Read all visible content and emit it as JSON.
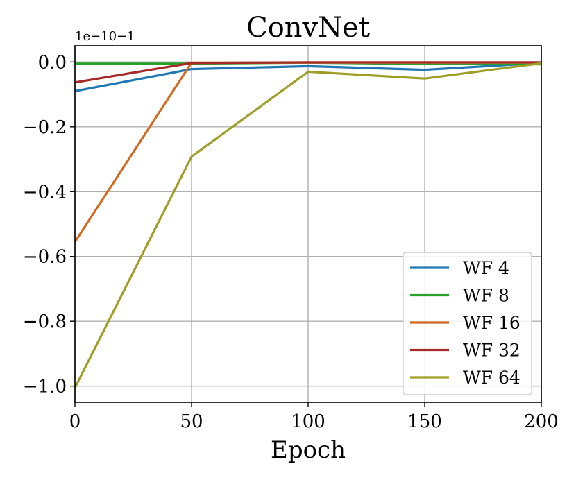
{
  "chart_data": {
    "type": "line",
    "title": "ConvNet",
    "xlabel": "Epoch",
    "ylabel": "",
    "y_offset_text": "1e−10−1",
    "x": [
      0,
      50,
      100,
      150,
      200
    ],
    "xlim": [
      0,
      200
    ],
    "ylim": [
      -1.05,
      0.05
    ],
    "xticks": [
      0,
      50,
      100,
      150,
      200
    ],
    "xtick_labels": [
      "0",
      "50",
      "100",
      "150",
      "200"
    ],
    "yticks": [
      0.0,
      -0.2,
      -0.4,
      -0.6,
      -0.8,
      -1.0
    ],
    "ytick_labels": [
      "0.0",
      "−0.2",
      "−0.4",
      "−0.6",
      "−0.8",
      "−1.0"
    ],
    "grid": true,
    "legend_position": "bottom-right",
    "series": [
      {
        "name": "WF 4",
        "color": "#1f77b4",
        "values": [
          -0.09,
          -0.022,
          -0.013,
          -0.024,
          -0.003
        ]
      },
      {
        "name": "WF 8",
        "color": "#2ca02c",
        "values": [
          -0.005,
          -0.005,
          -0.002,
          -0.006,
          -0.007
        ]
      },
      {
        "name": "WF 16",
        "color": "#d2691e",
        "values": [
          -0.555,
          -0.002,
          -0.002,
          -0.002,
          -0.002
        ]
      },
      {
        "name": "WF 32",
        "color": "#a52a2a",
        "values": [
          -0.063,
          -0.003,
          -0.001,
          -0.001,
          -0.001
        ]
      },
      {
        "name": "WF 64",
        "color": "#9e9e26",
        "values": [
          -1.005,
          -0.292,
          -0.03,
          -0.051,
          -0.004
        ]
      }
    ]
  }
}
